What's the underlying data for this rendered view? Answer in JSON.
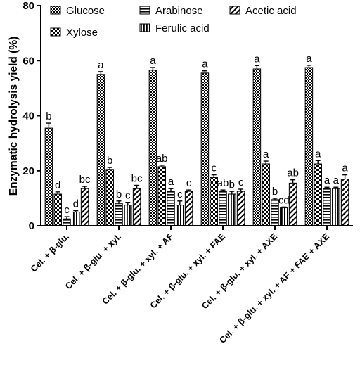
{
  "chart_data": {
    "type": "bar",
    "ylabel": "Enzymatic hydrolysis yield (%)",
    "ylim": [
      0,
      80
    ],
    "yticks": [
      "0",
      "20",
      "40",
      "60",
      "80"
    ],
    "categories": [
      "Cel. + β-glu.",
      "Cel. + β-glu. + xyl.",
      "Cel. + β-glu. + xyl. + AF",
      "Cel. + β-glu. + xyl. + FAE",
      "Cel. + β-glu. + xyl. + AXE",
      "Cel. + β-glu. + xyl. + AF + FAE + AXE"
    ],
    "series": [
      {
        "name": "Glucose",
        "pattern": "checker",
        "values": [
          35.5,
          55.0,
          56.5,
          55.5,
          57.0,
          57.5
        ],
        "errors": [
          1.8,
          1.0,
          1.0,
          0.8,
          1.2,
          0.8
        ],
        "labels": [
          "b",
          "a",
          "a",
          "a",
          "a",
          "a"
        ]
      },
      {
        "name": "Xylose",
        "pattern": "cross",
        "values": [
          11.5,
          20.5,
          21.5,
          17.5,
          22.5,
          22.5
        ],
        "errors": [
          0.8,
          0.7,
          0.5,
          1.0,
          1.0,
          1.2
        ],
        "labels": [
          "d",
          "b",
          "ab",
          "c",
          "a",
          "a"
        ]
      },
      {
        "name": "Arabinose",
        "pattern": "hlines",
        "values": [
          2.5,
          8.0,
          12.5,
          12.5,
          9.5,
          13.5
        ],
        "errors": [
          0.8,
          1.0,
          1.0,
          0.5,
          0.5,
          0.5
        ],
        "labels": [
          "c",
          "b",
          "a",
          "ab",
          "b",
          "a"
        ]
      },
      {
        "name": "Ferulic acid",
        "pattern": "vlines",
        "values": [
          5.0,
          7.5,
          7.5,
          11.5,
          6.5,
          13.5
        ],
        "errors": [
          0.5,
          1.0,
          1.5,
          1.0,
          0.3,
          0.5
        ],
        "labels": [
          "d",
          "c",
          "c",
          "b",
          "cd",
          "a"
        ]
      },
      {
        "name": "Acetic acid",
        "pattern": "diagonal",
        "values": [
          13.5,
          13.5,
          12.5,
          12.5,
          15.5,
          17.0
        ],
        "errors": [
          0.8,
          1.2,
          0.5,
          0.8,
          1.2,
          1.5
        ],
        "labels": [
          "bc",
          "bc",
          "c",
          "c",
          "ab",
          "a"
        ]
      }
    ],
    "legend": {
      "placement": "top-inside",
      "columns": [
        [
          "Glucose",
          "Xylose"
        ],
        [
          "Arabinose",
          "Ferulic acid"
        ],
        [
          "Acetic acid"
        ]
      ]
    }
  }
}
